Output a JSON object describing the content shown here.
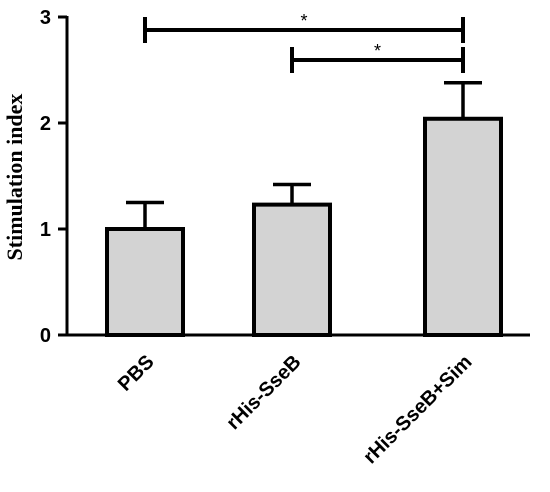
{
  "chart_data": {
    "type": "bar",
    "categories": [
      "PBS",
      "rHis-SseB",
      "rHis-SseB+Sim"
    ],
    "values": [
      1.0,
      1.23,
      2.04
    ],
    "errors": [
      0.25,
      0.19,
      0.34
    ],
    "ylabel": "Stimulation index",
    "xlabel": "",
    "ylim": [
      0,
      3
    ],
    "yticks": [
      0,
      1,
      2,
      3
    ],
    "bar_color": "#d3d3d3",
    "grid": false,
    "significance": [
      {
        "from": "PBS",
        "to": "rHis-SseB+Sim",
        "label": "*"
      },
      {
        "from": "rHis-SseB",
        "to": "rHis-SseB+Sim",
        "label": "*"
      }
    ]
  }
}
